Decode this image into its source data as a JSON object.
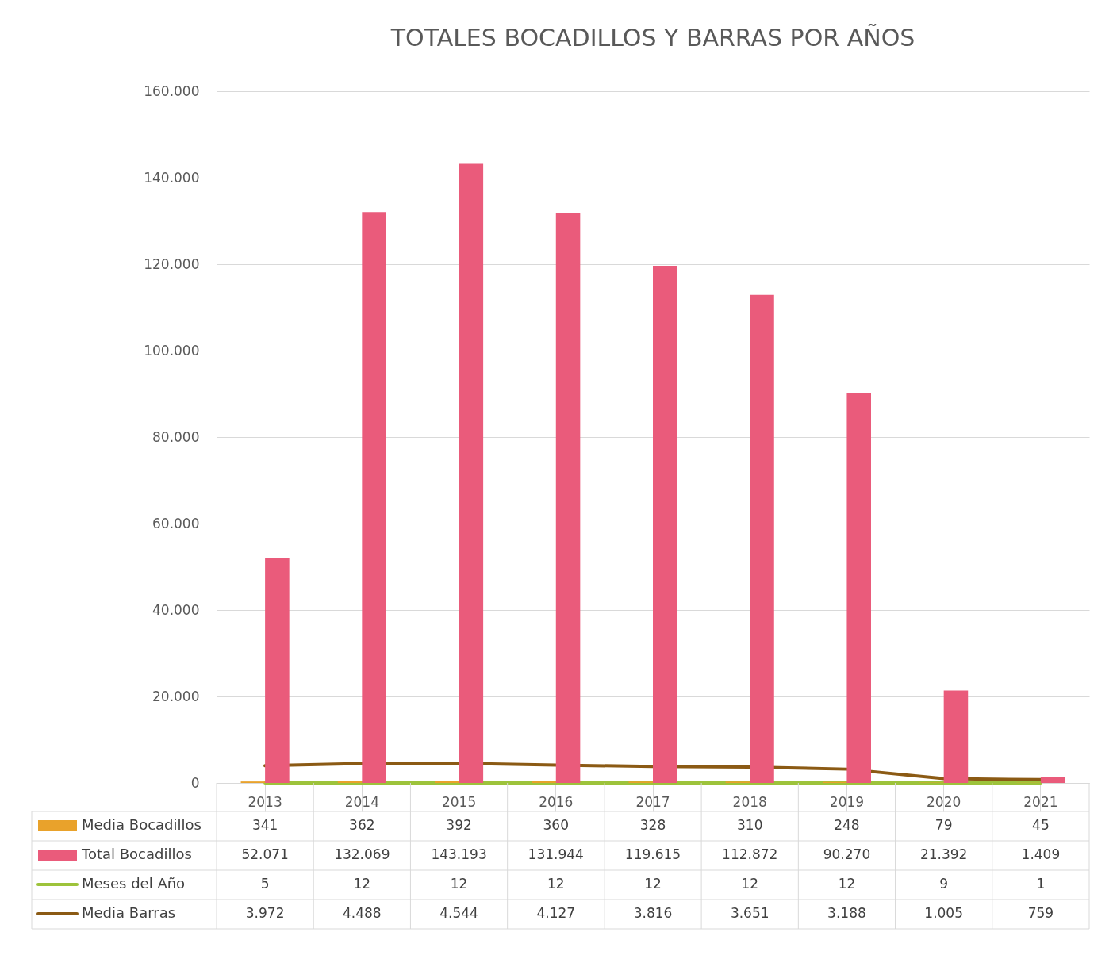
{
  "chart_data": {
    "type": "bar",
    "title": "TOTALES BOCADILLOS Y BARRAS POR AÑOS",
    "categories": [
      "2013",
      "2014",
      "2015",
      "2016",
      "2017",
      "2018",
      "2019",
      "2020",
      "2021"
    ],
    "series": [
      {
        "name": "Media Bocadillos",
        "color": "#e9a22b",
        "values": [
          341,
          362,
          392,
          360,
          328,
          310,
          248,
          79,
          45
        ],
        "value_labels": [
          "341",
          "362",
          "392",
          "360",
          "328",
          "310",
          "248",
          "79",
          "45"
        ]
      },
      {
        "name": "Total Bocadillos",
        "color": "#ea5b7b",
        "values": [
          52071,
          132069,
          143193,
          131944,
          119615,
          112872,
          90270,
          21392,
          1409
        ],
        "value_labels": [
          "52.071",
          "132.069",
          "143.193",
          "131.944",
          "119.615",
          "112.872",
          "90.270",
          "21.392",
          "1.409"
        ]
      },
      {
        "name": "Meses del Año",
        "type": "line",
        "color": "#9dc33b",
        "values": [
          5,
          12,
          12,
          12,
          12,
          12,
          12,
          9,
          1
        ],
        "value_labels": [
          "5",
          "12",
          "12",
          "12",
          "12",
          "12",
          "12",
          "9",
          "1"
        ]
      },
      {
        "name": "Media Barras",
        "type": "line",
        "color": "#8b5a14",
        "values": [
          3972,
          4488,
          4544,
          4127,
          3816,
          3651,
          3188,
          1005,
          759
        ],
        "value_labels": [
          "3.972",
          "4.488",
          "4.544",
          "4.127",
          "3.816",
          "3.651",
          "3.188",
          "1.005",
          "759"
        ]
      }
    ],
    "ylim": [
      0,
      160000
    ],
    "yticks": [
      0,
      {
        "value": 20000,
        "label": "20.000"
      },
      {
        "value": 40000,
        "label": "40.000"
      },
      {
        "value": 60000,
        "label": "60.000"
      },
      {
        "value": 80000,
        "label": "80.000"
      },
      {
        "value": 100000,
        "label": "100.000"
      },
      {
        "value": 120000,
        "label": "120.000"
      },
      {
        "value": 140000,
        "label": "140.000"
      },
      {
        "value": 160000,
        "label": "160.000"
      }
    ],
    "grid": "y",
    "legend": "bottom"
  }
}
